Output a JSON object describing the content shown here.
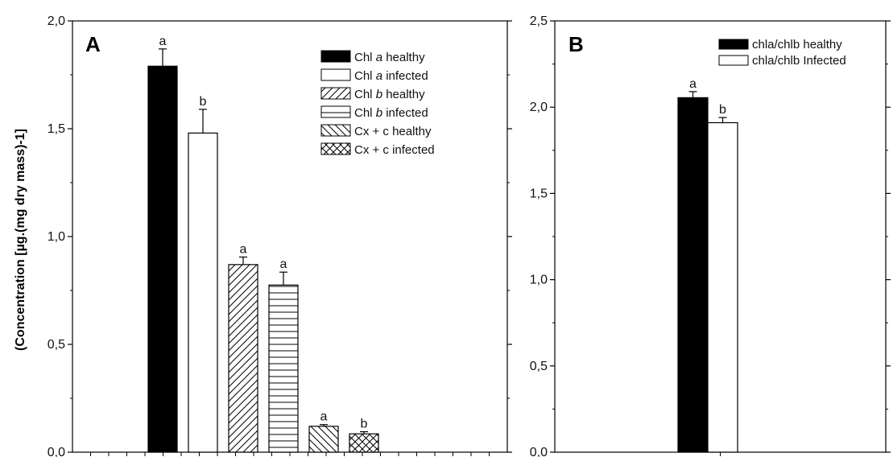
{
  "chart_data": [
    {
      "type": "bar",
      "panel": "A",
      "ylabel": "(Concentration [µg.(mg dry mass)-1]",
      "ylim": [
        0,
        2.0
      ],
      "yticks": [
        "0,0",
        "0,5",
        "1,0",
        "1,5",
        "2,0"
      ],
      "grid": false,
      "legend_position": "top-right",
      "series": [
        {
          "name": "Chl a healthy",
          "legend_parts": [
            "Chl ",
            "a",
            " healthy"
          ],
          "pattern": "solid-black",
          "value": 1.79,
          "error": 0.08,
          "sig": "a"
        },
        {
          "name": "Chl a infected",
          "legend_parts": [
            "Chl ",
            "a",
            " infected"
          ],
          "pattern": "white",
          "value": 1.48,
          "error": 0.11,
          "sig": "b"
        },
        {
          "name": "Chl b healthy",
          "legend_parts": [
            "Chl ",
            "b",
            " healthy"
          ],
          "pattern": "diagonal-up",
          "value": 0.87,
          "error": 0.035,
          "sig": "a"
        },
        {
          "name": "Chl b infected",
          "legend_parts": [
            "Chl ",
            "b",
            " infected"
          ],
          "pattern": "horizontal",
          "value": 0.775,
          "error": 0.06,
          "sig": "a"
        },
        {
          "name": "Cx + c healthy",
          "legend_parts": [
            "Cx + c healthy"
          ],
          "pattern": "diagonal-down",
          "value": 0.12,
          "error": 0.008,
          "sig": "a"
        },
        {
          "name": "Cx + c infected",
          "legend_parts": [
            "Cx + c infected"
          ],
          "pattern": "crosshatch",
          "value": 0.085,
          "error": 0.01,
          "sig": "b"
        }
      ]
    },
    {
      "type": "bar",
      "panel": "B",
      "ylabel": "",
      "ylim": [
        0,
        2.5
      ],
      "yticks": [
        "0,0",
        "0,5",
        "1,0",
        "1,5",
        "2,0",
        "2,5"
      ],
      "grid": false,
      "legend_position": "top-right",
      "series": [
        {
          "name": "chla/chlb healthy",
          "legend_parts": [
            "chla/chlb healthy"
          ],
          "pattern": "solid-black",
          "value": 2.055,
          "error": 0.035,
          "sig": "a"
        },
        {
          "name": "chla/chlb Infected",
          "legend_parts": [
            "chla/chlb Infected"
          ],
          "pattern": "white",
          "value": 1.91,
          "error": 0.03,
          "sig": "b"
        }
      ]
    }
  ]
}
